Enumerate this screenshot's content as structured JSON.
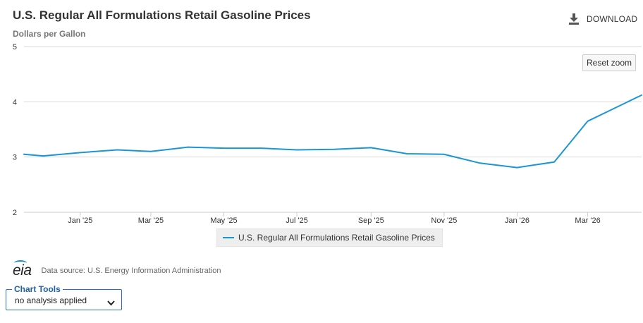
{
  "header": {
    "title": "U.S. Regular All Formulations Retail Gasoline Prices",
    "subtitle": "Dollars per Gallon",
    "download_label": "DOWNLOAD",
    "download_icon": "download-icon"
  },
  "controls": {
    "reset_zoom_label": "Reset zoom"
  },
  "colors": {
    "series": "#1b96d4",
    "grid": "#d8d8d8",
    "axis": "#cccccc",
    "accent": "#2a6fb7"
  },
  "chart_data": {
    "type": "line",
    "title": "U.S. Regular All Formulations Retail Gasoline Prices",
    "subtitle": "Dollars per Gallon",
    "xlabel": "",
    "ylabel": "Dollars per Gallon",
    "ylim": [
      2,
      5
    ],
    "yticks": [
      2,
      3,
      4,
      5
    ],
    "xlim": [
      "2024-11-15",
      "2026-04-15"
    ],
    "x_tick_dates": [
      "2025-01-01",
      "2025-03-01",
      "2025-05-01",
      "2025-07-01",
      "2025-09-01",
      "2025-11-01",
      "2026-01-01",
      "2026-03-01"
    ],
    "x_tick_labels": [
      "Jan '25",
      "Mar '25",
      "May '25",
      "Jul '25",
      "Sep '25",
      "Nov '25",
      "Jan '26",
      "Mar '26"
    ],
    "grid": true,
    "legend_position": "bottom-center",
    "series": [
      {
        "name": "U.S. Regular All Formulations Retail Gasoline Prices",
        "x": [
          "2024-11-15",
          "2024-12-01",
          "2025-01-01",
          "2025-02-01",
          "2025-03-01",
          "2025-04-01",
          "2025-05-01",
          "2025-06-01",
          "2025-07-01",
          "2025-08-01",
          "2025-09-01",
          "2025-10-01",
          "2025-11-01",
          "2025-12-01",
          "2026-01-01",
          "2026-02-01",
          "2026-03-01",
          "2026-04-15"
        ],
        "values": [
          3.05,
          3.02,
          3.08,
          3.13,
          3.1,
          3.18,
          3.16,
          3.16,
          3.13,
          3.14,
          3.17,
          3.06,
          3.05,
          2.89,
          2.81,
          2.91,
          3.65,
          4.12
        ]
      }
    ]
  },
  "legend": {
    "items": [
      {
        "label": "U.S. Regular All Formulations Retail Gasoline Prices"
      }
    ]
  },
  "footer": {
    "logo_text": "eia",
    "source_text": "Data source: U.S. Energy Information Administration"
  },
  "chart_tools": {
    "label": "Chart Tools",
    "selected": "no analysis applied"
  }
}
